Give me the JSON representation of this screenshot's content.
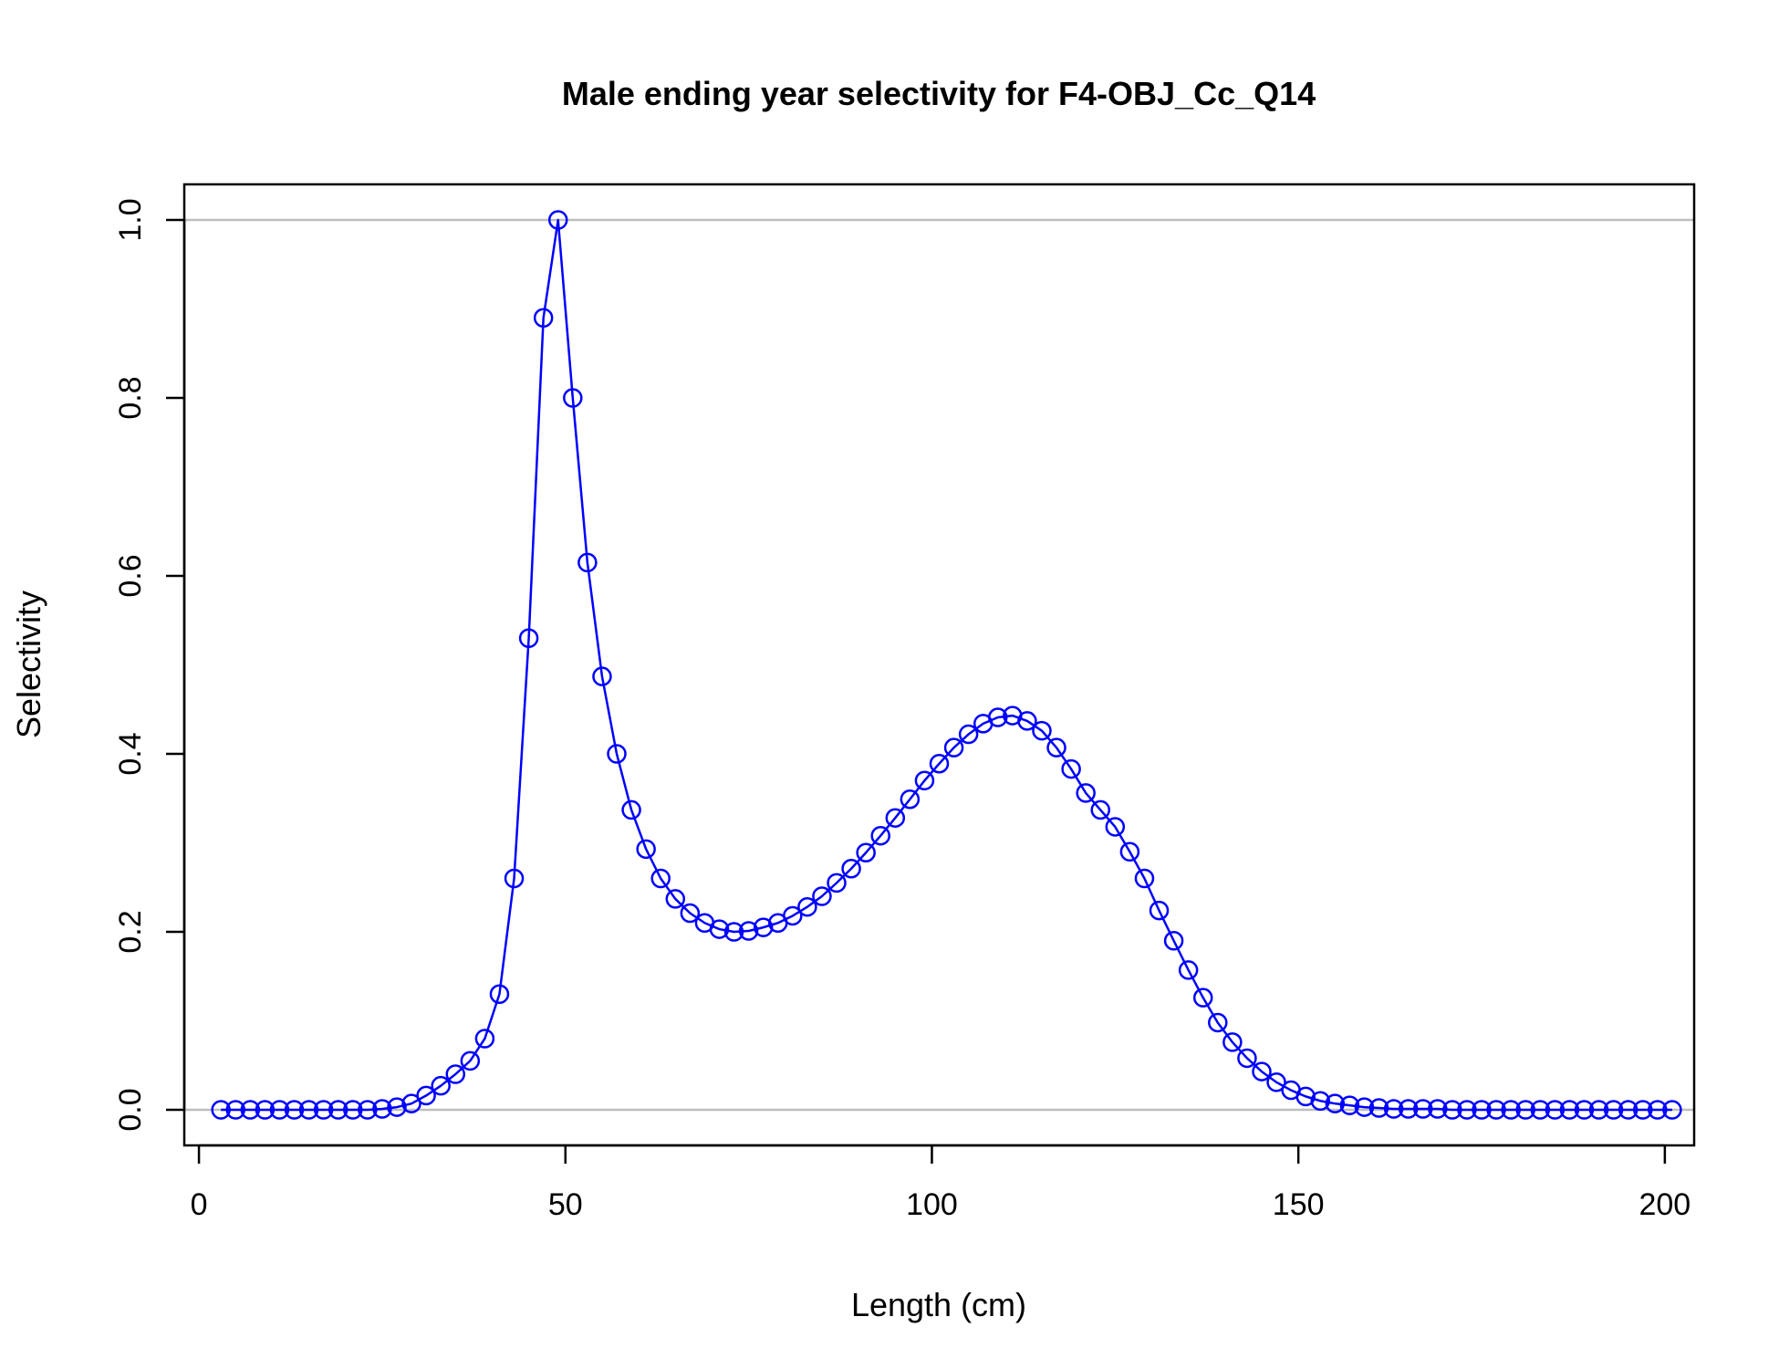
{
  "chart_data": {
    "type": "line",
    "title": "Male ending year selectivity for F4-OBJ_Cc_Q14",
    "xlabel": "Length (cm)",
    "ylabel": "Selectivity",
    "xlim": [
      -2.0,
      204.0
    ],
    "ylim": [
      -0.04,
      1.04
    ],
    "x_ticks": [
      0,
      50,
      100,
      150,
      200
    ],
    "x_tick_labels": [
      "0",
      "50",
      "100",
      "150",
      "200"
    ],
    "y_ticks": [
      0.0,
      0.2,
      0.4,
      0.6,
      0.8,
      1.0
    ],
    "y_tick_labels": [
      "0.0",
      "0.2",
      "0.4",
      "0.6",
      "0.8",
      "1.0"
    ],
    "reference_lines": [
      0,
      1
    ],
    "reference_line_color": "#bebebe",
    "series_color": "#0000ff",
    "grid": false,
    "legend": "none",
    "series": [
      {
        "x": [
          3,
          5,
          7,
          9,
          11,
          13,
          15,
          17,
          19,
          21,
          23,
          25,
          27,
          29,
          31,
          33,
          35,
          37,
          39,
          41,
          43,
          45,
          47,
          49,
          51,
          53,
          55,
          57,
          59,
          61,
          63,
          65,
          67,
          69,
          71,
          73,
          75,
          77,
          79,
          81,
          83,
          85,
          87,
          89,
          91,
          93,
          95,
          97,
          99,
          101,
          103,
          105,
          107,
          109,
          111,
          113,
          115,
          117,
          119,
          121,
          123,
          125,
          127,
          129,
          131,
          133,
          135,
          137,
          139,
          141,
          143,
          145,
          147,
          149,
          151,
          153,
          155,
          157,
          159,
          161,
          163,
          165,
          167,
          169,
          171,
          173,
          175,
          177,
          179,
          181,
          183,
          185,
          187,
          189,
          191,
          193,
          195,
          197,
          199,
          201
        ],
        "y": [
          0,
          0,
          0,
          0,
          0,
          0,
          0,
          0,
          0,
          0,
          0,
          0.001,
          0.003,
          0.007,
          0.016,
          0.027,
          0.04,
          0.055,
          0.08,
          0.13,
          0.26,
          0.53,
          0.89,
          1.0,
          0.8,
          0.615,
          0.487,
          0.4,
          0.337,
          0.293,
          0.26,
          0.237,
          0.221,
          0.21,
          0.203,
          0.2,
          0.201,
          0.205,
          0.21,
          0.218,
          0.228,
          0.24,
          0.255,
          0.271,
          0.289,
          0.308,
          0.328,
          0.349,
          0.37,
          0.389,
          0.407,
          0.422,
          0.434,
          0.441,
          0.443,
          0.437,
          0.426,
          0.407,
          0.383,
          0.356,
          0.337,
          0.318,
          0.29,
          0.26,
          0.224,
          0.19,
          0.157,
          0.126,
          0.098,
          0.076,
          0.058,
          0.043,
          0.031,
          0.022,
          0.015,
          0.01,
          0.007,
          0.005,
          0.003,
          0.002,
          0.001,
          0.001,
          0.001,
          0.001,
          0,
          0,
          0,
          0,
          0,
          0,
          0,
          0,
          0,
          0,
          0,
          0,
          0,
          0,
          0,
          0
        ]
      }
    ]
  }
}
